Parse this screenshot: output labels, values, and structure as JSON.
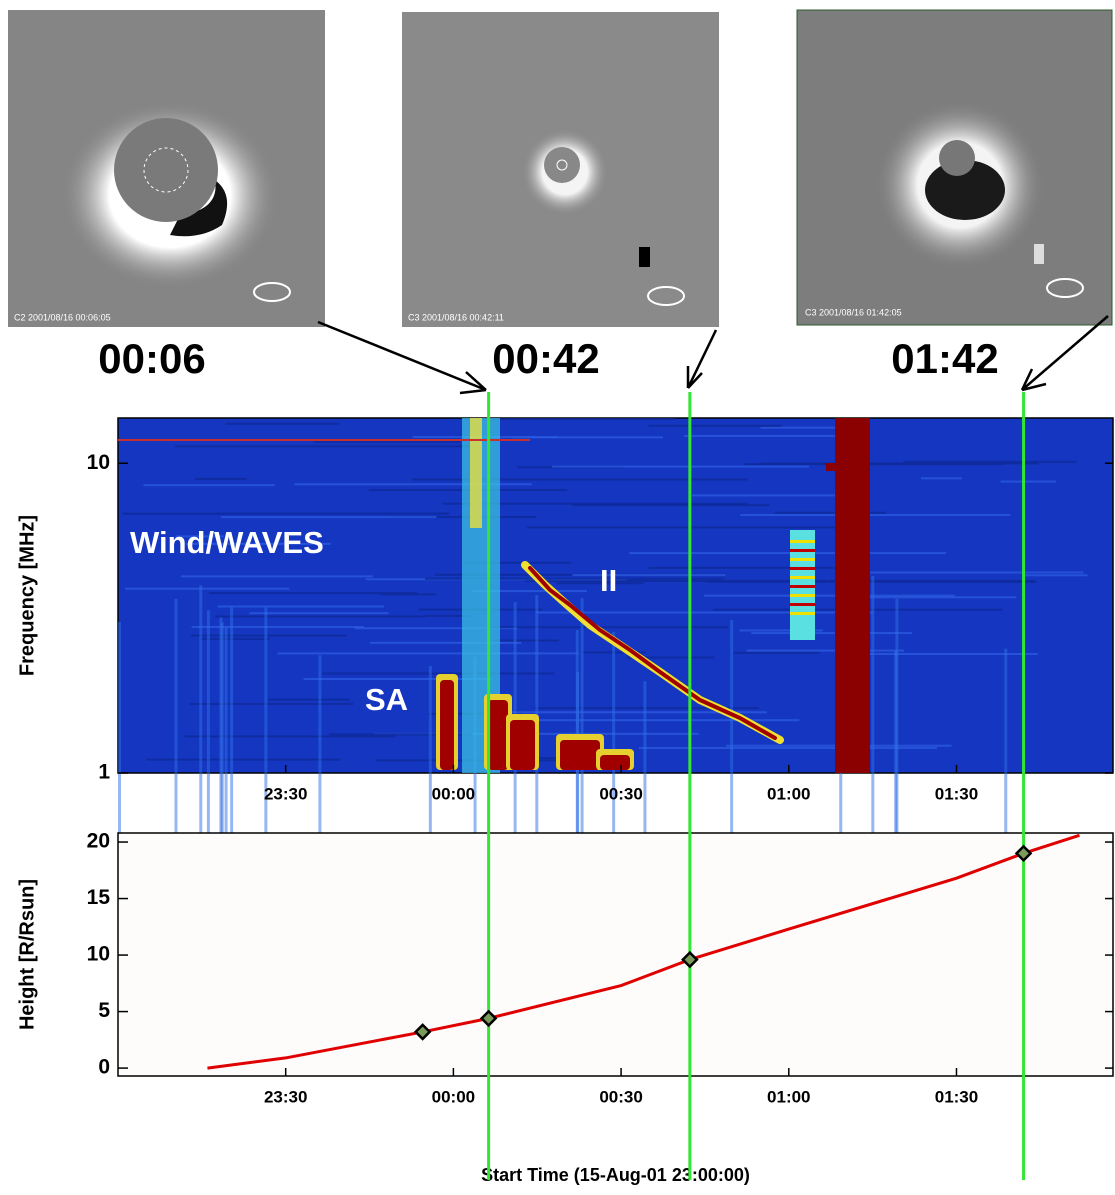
{
  "images": [
    {
      "label": "00:06",
      "caption": "C2 2001/08/16 00:06:05"
    },
    {
      "label": "00:42",
      "caption": "C3 2001/08/16 00:42:11"
    },
    {
      "label": "01:42",
      "caption": "C3 2001/08/16 01:42:05"
    }
  ],
  "chart_data": [
    {
      "type": "spectrogram",
      "ylabel": "Frequency [MHz]",
      "annotations": [
        "Wind/WAVES",
        "II",
        "SA"
      ],
      "xlim": [
        0,
        178
      ],
      "xticks": [
        {
          "value": 30,
          "label": "23:30"
        },
        {
          "value": 60,
          "label": "00:00"
        },
        {
          "value": 90,
          "label": "00:30"
        },
        {
          "value": 120,
          "label": "01:00"
        },
        {
          "value": 150,
          "label": "01:30"
        }
      ],
      "ylim": [
        1,
        14
      ],
      "yticks": [
        1,
        10
      ],
      "log_y": true
    },
    {
      "type": "line",
      "xlabel": "Start Time (15-Aug-01 23:00:00)",
      "ylabel": "Height [R/Rsun]",
      "xlim": [
        0,
        178
      ],
      "xticks": [
        {
          "value": 30,
          "label": "23:30"
        },
        {
          "value": 60,
          "label": "00:00"
        },
        {
          "value": 90,
          "label": "00:30"
        },
        {
          "value": 120,
          "label": "01:00"
        },
        {
          "value": 150,
          "label": "01:30"
        }
      ],
      "ylim": [
        -0.7,
        20.8
      ],
      "yticks": [
        0,
        5,
        10,
        15,
        20
      ],
      "series": [
        {
          "color": "#e00000",
          "x": [
            16,
            30,
            54.5,
            66.3,
            90,
            102.3,
            120,
            150,
            162,
            172
          ],
          "values": [
            0,
            0.9,
            3.2,
            4.4,
            7.3,
            9.6,
            12.3,
            16.8,
            19.0,
            20.6
          ]
        },
        {
          "marker": "diamond",
          "color": "#000000",
          "x": [
            54.5,
            66.3,
            102.3,
            162
          ],
          "values": [
            3.2,
            4.4,
            9.6,
            19.0
          ]
        }
      ],
      "vlines": [
        66.3,
        102.3,
        162
      ],
      "vline_color": "#33e633"
    }
  ]
}
